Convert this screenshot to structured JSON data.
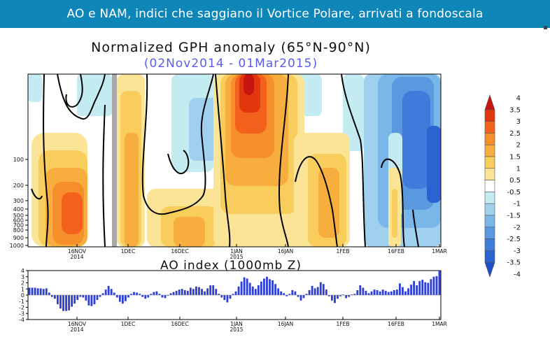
{
  "header": {
    "title": "AO e NAM, indici che saggiano il Vortice Polare, arrivati a fondoscala"
  },
  "chart_data": [
    {
      "type": "heatmap",
      "title": "Normalized GPH anomaly (65°N-90°N)",
      "subtitle": "(02Nov2014 - 01Mar2015)",
      "y_tick_labels": [
        "100",
        "200",
        "300",
        "400",
        "500",
        "600",
        "700",
        "800",
        "900",
        "1000"
      ],
      "x_tick_labels": [
        "16NOV",
        "1DEC",
        "16DEC",
        "1JAN",
        "16JAN",
        "1FEB",
        "16FEB",
        "1MAR"
      ],
      "x_year_labels": [
        {
          "under": "16NOV",
          "text": "2014"
        },
        {
          "under": "1JAN",
          "text": "2015"
        }
      ],
      "colorbar": {
        "labels": [
          "4",
          "3.5",
          "3",
          "2.5",
          "2",
          "1.5",
          "1",
          "0.5",
          "-0.5",
          "-1",
          "-1.5",
          "-2",
          "-2.5",
          "-3",
          "-3.5",
          "-4"
        ],
        "colors": [
          "#c8140e",
          "#e2360f",
          "#f2621c",
          "#f78e2c",
          "#f8ae3e",
          "#f9cd5c",
          "#fbe496",
          "#ffffff",
          "#c4eaf2",
          "#9fd1ee",
          "#7ab6e8",
          "#5a98e0",
          "#3f7cda",
          "#2b63d2",
          "#1e4ec8"
        ]
      }
    },
    {
      "type": "bar",
      "title": "AO index (1000mb Z)",
      "ylim": [
        -4,
        4
      ],
      "y_ticks": [
        -4,
        -3,
        -2,
        -1,
        0,
        1,
        2,
        3,
        4
      ],
      "x_tick_labels": [
        "16NOV",
        "1DEC",
        "16DEC",
        "1JAN",
        "16JAN",
        "1FEB",
        "16FEB",
        "1MAR"
      ],
      "x_year_labels": [
        {
          "under": "16NOV",
          "text": "2014"
        },
        {
          "under": "1JAN",
          "text": "2015"
        }
      ],
      "bar_color": "#2e3fd6",
      "values": [
        1.2,
        1.2,
        1.2,
        1.1,
        1.1,
        1.0,
        1.1,
        0.4,
        -0.3,
        -0.6,
        -1.5,
        -2.2,
        -2.6,
        -2.6,
        -2.5,
        -1.9,
        -1.4,
        -0.8,
        -0.3,
        -0.4,
        -0.9,
        -1.7,
        -1.8,
        -1.5,
        -0.8,
        -0.3,
        0.3,
        0.9,
        1.5,
        1.0,
        0.4,
        -0.4,
        -1.1,
        -1.4,
        -1.0,
        -0.4,
        0.2,
        0.5,
        0.4,
        0.2,
        -0.3,
        -0.6,
        -0.4,
        0.2,
        0.5,
        0.6,
        0.2,
        -0.4,
        -0.5,
        -0.1,
        0.3,
        0.5,
        0.7,
        0.9,
        1.0,
        0.8,
        0.7,
        1.2,
        1.0,
        1.4,
        1.3,
        1.0,
        0.6,
        1.1,
        1.6,
        1.6,
        1.0,
        0.2,
        -0.4,
        -0.8,
        -1.2,
        -0.6,
        0.2,
        0.6,
        1.4,
        2.2,
        2.9,
        2.7,
        2.0,
        1.4,
        1.0,
        1.6,
        2.2,
        2.7,
        3.0,
        2.6,
        2.4,
        1.8,
        1.1,
        0.6,
        0.3,
        -0.2,
        0.2,
        0.8,
        0.6,
        -0.3,
        -0.9,
        -0.5,
        0.2,
        0.8,
        1.5,
        1.1,
        1.3,
        2.1,
        1.8,
        0.9,
        -0.2,
        -0.9,
        -1.3,
        -0.6,
        -0.2,
        0.1,
        -0.5,
        -0.3,
        0.1,
        0.2,
        0.8,
        1.6,
        1.2,
        0.7,
        0.3,
        0.6,
        0.9,
        0.8,
        0.6,
        0.9,
        0.7,
        0.5,
        0.6,
        0.8,
        0.9,
        1.9,
        1.3,
        0.6,
        1.1,
        1.7,
        2.3,
        1.6,
        2.3,
        2.5,
        2.1,
        2.0,
        2.6,
        3.0,
        3.1,
        4.0
      ]
    }
  ]
}
